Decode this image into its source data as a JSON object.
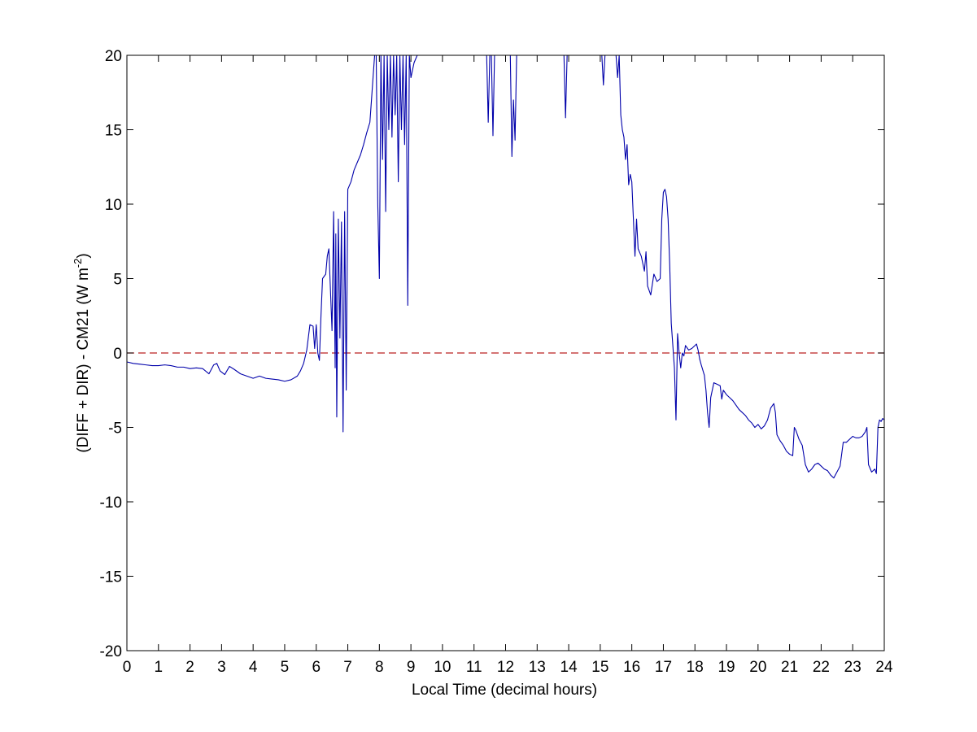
{
  "chart_data": {
    "type": "line",
    "xlabel": "Local Time (decimal hours)",
    "ylabel": {
      "prefix": "(DIFF + DIR) - CM21 (W m",
      "superscript": "-2",
      "suffix": ")"
    },
    "xlim": [
      0,
      24
    ],
    "ylim": [
      -20,
      20
    ],
    "xticks": [
      0,
      1,
      2,
      3,
      4,
      5,
      6,
      7,
      8,
      9,
      10,
      11,
      12,
      13,
      14,
      15,
      16,
      17,
      18,
      19,
      20,
      21,
      22,
      23,
      24
    ],
    "yticks": [
      -20,
      -15,
      -10,
      -5,
      0,
      5,
      10,
      15,
      20
    ],
    "grid": false,
    "series": [
      {
        "color": "#0000aa",
        "points": [
          [
            0.0,
            -0.6
          ],
          [
            0.2,
            -0.7
          ],
          [
            0.4,
            -0.75
          ],
          [
            0.6,
            -0.8
          ],
          [
            0.8,
            -0.85
          ],
          [
            1.0,
            -0.85
          ],
          [
            1.2,
            -0.8
          ],
          [
            1.4,
            -0.85
          ],
          [
            1.6,
            -0.95
          ],
          [
            1.8,
            -0.95
          ],
          [
            2.0,
            -1.05
          ],
          [
            2.2,
            -1.0
          ],
          [
            2.4,
            -1.05
          ],
          [
            2.6,
            -1.4
          ],
          [
            2.75,
            -0.8
          ],
          [
            2.85,
            -0.7
          ],
          [
            2.95,
            -1.2
          ],
          [
            3.1,
            -1.45
          ],
          [
            3.25,
            -0.9
          ],
          [
            3.4,
            -1.1
          ],
          [
            3.6,
            -1.4
          ],
          [
            3.8,
            -1.55
          ],
          [
            4.0,
            -1.7
          ],
          [
            4.2,
            -1.55
          ],
          [
            4.4,
            -1.7
          ],
          [
            4.6,
            -1.75
          ],
          [
            4.8,
            -1.8
          ],
          [
            5.0,
            -1.9
          ],
          [
            5.2,
            -1.8
          ],
          [
            5.4,
            -1.55
          ],
          [
            5.5,
            -1.2
          ],
          [
            5.6,
            -0.7
          ],
          [
            5.7,
            0.2
          ],
          [
            5.8,
            1.9
          ],
          [
            5.9,
            1.8
          ],
          [
            5.95,
            0.3
          ],
          [
            6.0,
            1.9
          ],
          [
            6.05,
            0.0
          ],
          [
            6.1,
            -0.5
          ],
          [
            6.15,
            2.5
          ],
          [
            6.2,
            5.0
          ],
          [
            6.3,
            5.3
          ],
          [
            6.35,
            6.5
          ],
          [
            6.4,
            7.0
          ],
          [
            6.5,
            1.5
          ],
          [
            6.55,
            9.5
          ],
          [
            6.6,
            -1.0
          ],
          [
            6.62,
            8.0
          ],
          [
            6.65,
            -4.3
          ],
          [
            6.7,
            9.0
          ],
          [
            6.75,
            1.0
          ],
          [
            6.8,
            8.8
          ],
          [
            6.85,
            -5.3
          ],
          [
            6.9,
            9.5
          ],
          [
            6.95,
            -2.5
          ],
          [
            7.0,
            11.0
          ],
          [
            7.1,
            11.5
          ],
          [
            7.2,
            12.3
          ],
          [
            7.3,
            12.8
          ],
          [
            7.4,
            13.3
          ],
          [
            7.5,
            14.0
          ],
          [
            7.6,
            14.8
          ],
          [
            7.7,
            15.5
          ],
          [
            7.75,
            17.0
          ],
          [
            7.8,
            18.5
          ],
          [
            7.85,
            20.0
          ],
          [
            7.9,
            20.0
          ],
          [
            7.95,
            10.0
          ],
          [
            8.0,
            5.0
          ],
          [
            8.05,
            20.0
          ],
          [
            8.1,
            13.0
          ],
          [
            8.15,
            20.0
          ],
          [
            8.2,
            9.5
          ],
          [
            8.25,
            20.0
          ],
          [
            8.3,
            15.0
          ],
          [
            8.35,
            20.0
          ],
          [
            8.4,
            14.5
          ],
          [
            8.45,
            20.0
          ],
          [
            8.5,
            16.0
          ],
          [
            8.55,
            20.0
          ],
          [
            8.6,
            11.5
          ],
          [
            8.65,
            20.0
          ],
          [
            8.7,
            15.0
          ],
          [
            8.75,
            20.0
          ],
          [
            8.8,
            14.0
          ],
          [
            8.85,
            20.0
          ],
          [
            8.9,
            3.2
          ],
          [
            8.95,
            20.0
          ],
          [
            9.0,
            18.5
          ],
          [
            9.1,
            19.5
          ],
          [
            9.2,
            20.0
          ]
        ]
      },
      {
        "color": "#0000aa",
        "points": [
          [
            11.4,
            20.0
          ],
          [
            11.45,
            15.5
          ],
          [
            11.5,
            20.0
          ]
        ]
      },
      {
        "color": "#0000aa",
        "points": [
          [
            11.55,
            20.0
          ],
          [
            11.6,
            14.6
          ],
          [
            11.65,
            20.0
          ]
        ]
      },
      {
        "color": "#0000aa",
        "points": [
          [
            12.15,
            20.0
          ],
          [
            12.2,
            13.2
          ],
          [
            12.25,
            17.0
          ],
          [
            12.3,
            14.3
          ],
          [
            12.35,
            20.0
          ]
        ]
      },
      {
        "color": "#0000aa",
        "points": [
          [
            13.85,
            20.0
          ],
          [
            13.9,
            15.8
          ],
          [
            13.95,
            20.0
          ]
        ]
      },
      {
        "color": "#0000aa",
        "points": [
          [
            15.05,
            20.0
          ],
          [
            15.1,
            18.0
          ],
          [
            15.15,
            20.0
          ]
        ]
      },
      {
        "color": "#0000aa",
        "points": [
          [
            15.5,
            20.0
          ],
          [
            15.55,
            18.5
          ],
          [
            15.6,
            20.0
          ],
          [
            15.65,
            16.0
          ],
          [
            15.7,
            15.0
          ],
          [
            15.75,
            14.5
          ],
          [
            15.8,
            13.0
          ],
          [
            15.85,
            14.0
          ],
          [
            15.9,
            11.3
          ],
          [
            15.95,
            12.0
          ],
          [
            16.0,
            11.5
          ],
          [
            16.05,
            9.0
          ],
          [
            16.1,
            6.5
          ],
          [
            16.15,
            9.0
          ],
          [
            16.2,
            7.0
          ],
          [
            16.3,
            6.5
          ],
          [
            16.4,
            5.5
          ],
          [
            16.45,
            6.8
          ],
          [
            16.5,
            4.5
          ],
          [
            16.6,
            3.9
          ],
          [
            16.7,
            5.3
          ],
          [
            16.8,
            4.8
          ],
          [
            16.9,
            5.0
          ],
          [
            16.95,
            9.0
          ],
          [
            17.0,
            10.8
          ],
          [
            17.05,
            11.0
          ],
          [
            17.1,
            10.5
          ],
          [
            17.15,
            9.0
          ],
          [
            17.2,
            6.0
          ],
          [
            17.25,
            2.0
          ],
          [
            17.3,
            0.5
          ],
          [
            17.35,
            -1.0
          ],
          [
            17.4,
            -4.5
          ],
          [
            17.45,
            1.3
          ],
          [
            17.5,
            0.0
          ],
          [
            17.55,
            -1.0
          ],
          [
            17.6,
            0.0
          ],
          [
            17.65,
            -0.2
          ],
          [
            17.7,
            0.5
          ],
          [
            17.8,
            0.2
          ],
          [
            17.9,
            0.3
          ],
          [
            18.0,
            0.5
          ],
          [
            18.05,
            0.6
          ],
          [
            18.1,
            0.2
          ],
          [
            18.15,
            -0.4
          ],
          [
            18.2,
            -0.8
          ],
          [
            18.3,
            -1.5
          ],
          [
            18.35,
            -2.5
          ],
          [
            18.4,
            -4.0
          ],
          [
            18.45,
            -5.0
          ],
          [
            18.5,
            -3.0
          ],
          [
            18.6,
            -2.0
          ],
          [
            18.7,
            -2.1
          ],
          [
            18.8,
            -2.2
          ],
          [
            18.85,
            -3.1
          ],
          [
            18.9,
            -2.5
          ],
          [
            19.0,
            -2.8
          ],
          [
            19.1,
            -3.0
          ],
          [
            19.2,
            -3.2
          ],
          [
            19.3,
            -3.5
          ],
          [
            19.4,
            -3.8
          ],
          [
            19.5,
            -4.0
          ],
          [
            19.6,
            -4.2
          ],
          [
            19.7,
            -4.5
          ],
          [
            19.8,
            -4.7
          ],
          [
            19.9,
            -5.0
          ],
          [
            20.0,
            -4.8
          ],
          [
            20.1,
            -5.1
          ],
          [
            20.2,
            -4.9
          ],
          [
            20.3,
            -4.5
          ],
          [
            20.4,
            -3.7
          ],
          [
            20.5,
            -3.4
          ],
          [
            20.55,
            -4.0
          ],
          [
            20.6,
            -5.5
          ],
          [
            20.7,
            -5.9
          ],
          [
            20.8,
            -6.2
          ],
          [
            20.9,
            -6.6
          ],
          [
            21.0,
            -6.8
          ],
          [
            21.1,
            -6.9
          ],
          [
            21.15,
            -5.0
          ],
          [
            21.2,
            -5.2
          ],
          [
            21.3,
            -5.8
          ],
          [
            21.4,
            -6.2
          ],
          [
            21.5,
            -7.5
          ],
          [
            21.6,
            -8.0
          ],
          [
            21.7,
            -7.8
          ],
          [
            21.8,
            -7.5
          ],
          [
            21.9,
            -7.4
          ],
          [
            22.0,
            -7.6
          ],
          [
            22.1,
            -7.8
          ],
          [
            22.2,
            -7.9
          ],
          [
            22.3,
            -8.2
          ],
          [
            22.4,
            -8.4
          ],
          [
            22.5,
            -8.0
          ],
          [
            22.55,
            -7.8
          ],
          [
            22.6,
            -7.6
          ],
          [
            22.7,
            -6.0
          ],
          [
            22.8,
            -6.0
          ],
          [
            22.9,
            -5.8
          ],
          [
            23.0,
            -5.6
          ],
          [
            23.1,
            -5.7
          ],
          [
            23.2,
            -5.7
          ],
          [
            23.3,
            -5.6
          ],
          [
            23.4,
            -5.3
          ],
          [
            23.45,
            -5.0
          ],
          [
            23.5,
            -7.5
          ],
          [
            23.6,
            -8.0
          ],
          [
            23.7,
            -7.8
          ],
          [
            23.75,
            -8.1
          ],
          [
            23.8,
            -5.0
          ],
          [
            23.85,
            -4.5
          ],
          [
            23.9,
            -4.6
          ],
          [
            23.95,
            -4.4
          ],
          [
            24.0,
            -4.5
          ]
        ]
      }
    ],
    "reference_line": {
      "y": 0,
      "style": "dashed",
      "color": "#bb2222"
    }
  }
}
